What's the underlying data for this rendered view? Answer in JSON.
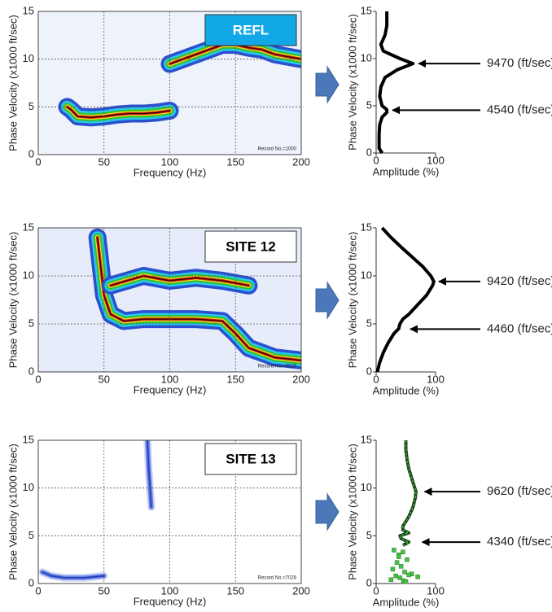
{
  "chart_data": [
    {
      "type": "dispersion",
      "xlabel": "Frequency (Hz)",
      "ylabel": "Phase Velocity (x1000 ft/sec)",
      "xlim": [
        0,
        200
      ],
      "ylim": [
        0,
        15
      ],
      "xticks": [
        0,
        50,
        100,
        150,
        200
      ],
      "yticks": [
        0,
        5,
        10,
        15
      ],
      "grid": true,
      "background": "#eef2fb",
      "colors": [
        "#2a4fd0",
        "#28c8e8",
        "#30c030",
        "#f0e020",
        "#d02010",
        "#2a0000"
      ],
      "label": "REFL",
      "label_color": "#12a8e8",
      "label_text_color": "#ffffff",
      "note": "Record No.=1000",
      "series": [
        {
          "x": [
            22,
            25,
            30,
            40,
            50,
            60,
            70,
            80,
            90,
            100
          ],
          "values": [
            5,
            4.7,
            4,
            3.9,
            4,
            4.2,
            4.3,
            4.3,
            4.4,
            4.6
          ]
        },
        {
          "x": [
            100,
            110,
            120,
            130,
            140,
            150,
            160,
            170,
            180,
            200
          ],
          "values": [
            9.5,
            10,
            10.5,
            11,
            11.5,
            11.5,
            11.2,
            11,
            10.5,
            10
          ]
        }
      ]
    },
    {
      "type": "profile",
      "xlabel": "Amplitude (%)",
      "ylabel": "Phase Velocity (x1000 ft/sec)",
      "xlim": [
        0,
        100
      ],
      "ylim": [
        0,
        15
      ],
      "xticks": [
        0,
        100
      ],
      "yticks": [
        0,
        5,
        10,
        15
      ],
      "color": "#000000",
      "x": [
        10,
        5,
        5,
        5,
        6,
        10,
        18,
        18,
        10,
        6,
        8,
        15,
        35,
        62,
        40,
        12,
        8,
        15,
        18,
        18
      ],
      "values": [
        0,
        0.5,
        1,
        2,
        3,
        3.8,
        4.3,
        4.6,
        5,
        6,
        7,
        8,
        8.8,
        9.47,
        10,
        10.8,
        11.5,
        12.5,
        13.5,
        15
      ],
      "annotations": [
        {
          "text": "9470 (ft/sec)",
          "y": 9.47,
          "x": 66
        },
        {
          "text": "4540 (ft/sec)",
          "y": 4.54,
          "x": 22
        }
      ]
    },
    {
      "type": "dispersion",
      "xlabel": "Frequency (Hz)",
      "ylabel": "Phase Velocity (x1000 ft/sec)",
      "xlim": [
        0,
        200
      ],
      "ylim": [
        0,
        15
      ],
      "xticks": [
        0,
        50,
        100,
        150,
        200
      ],
      "yticks": [
        0,
        5,
        10,
        15
      ],
      "grid": true,
      "background": "#e6ecfa",
      "colors": [
        "#2a4fd0",
        "#28c8e8",
        "#30c030",
        "#f0e020",
        "#d02010",
        "#2a0000"
      ],
      "label": "SITE 12",
      "label_color": "#ffffff",
      "label_text_color": "#000000",
      "note": "Record No.=6029",
      "series": [
        {
          "x": [
            45,
            50,
            55,
            65,
            80,
            100,
            120,
            140,
            150,
            160,
            180,
            200
          ],
          "values": [
            14,
            8,
            6,
            5.3,
            5.5,
            5.5,
            5.5,
            5.3,
            4,
            2.5,
            1.5,
            1.2
          ]
        },
        {
          "x": [
            55,
            80,
            100,
            120,
            140,
            160
          ],
          "values": [
            9,
            10,
            9.5,
            9.8,
            9.5,
            9
          ]
        }
      ]
    },
    {
      "type": "profile",
      "xlabel": "Amplitude (%)",
      "ylabel": "Phase Velocity (x1000 ft/sec)",
      "xlim": [
        0,
        100
      ],
      "ylim": [
        0,
        15
      ],
      "xticks": [
        0,
        100
      ],
      "yticks": [
        0,
        5,
        10,
        15
      ],
      "color": "#000000",
      "x": [
        2,
        6,
        12,
        20,
        30,
        38,
        40,
        45,
        55,
        70,
        85,
        95,
        97,
        92,
        78,
        60,
        42,
        25,
        10
      ],
      "values": [
        0,
        1,
        2,
        3,
        4,
        4.5,
        5,
        5.5,
        6,
        7,
        8,
        9,
        9.42,
        10,
        11,
        12,
        13,
        14,
        15
      ],
      "annotations": [
        {
          "text": "9420 (ft/sec)",
          "y": 9.42,
          "x": 100
        },
        {
          "text": "4460 (ft/sec)",
          "y": 4.46,
          "x": 52
        }
      ]
    },
    {
      "type": "dispersion",
      "xlabel": "Frequency (Hz)",
      "ylabel": "Phase Velocity (x1000 ft/sec)",
      "xlim": [
        0,
        200
      ],
      "ylim": [
        0,
        15
      ],
      "xticks": [
        0,
        50,
        100,
        150,
        200
      ],
      "yticks": [
        0,
        5,
        10,
        15
      ],
      "grid": true,
      "background": "#ffffff",
      "colors": [
        "#d4dcf6",
        "#6a86e4",
        "#2a3fc0"
      ],
      "label": "SITE 13",
      "label_color": "#ffffff",
      "label_text_color": "#000000",
      "note": "Record No.=7028",
      "series": [
        {
          "x": [
            3,
            10,
            20,
            35,
            50
          ],
          "values": [
            1.2,
            0.8,
            0.6,
            0.6,
            0.8
          ]
        },
        {
          "x": [
            83,
            84,
            85,
            86
          ],
          "values": [
            15,
            12,
            10,
            8
          ]
        }
      ]
    },
    {
      "type": "profile",
      "xlabel": "Amplitude (%)",
      "ylabel": "Phase Velocity (x1000 ft/sec)",
      "xlim": [
        0,
        100
      ],
      "ylim": [
        0,
        15
      ],
      "xticks": [
        0,
        100
      ],
      "yticks": [
        0,
        5,
        10,
        15
      ],
      "color": "#1e4a1e",
      "x": [
        45,
        55,
        42,
        40,
        55,
        45,
        45,
        55,
        62,
        66,
        67,
        65,
        60,
        55,
        52,
        50,
        50
      ],
      "values": [
        4,
        4.34,
        4.7,
        5,
        5.3,
        5.6,
        6,
        7,
        8,
        9,
        9.62,
        10,
        11,
        12,
        13,
        14,
        15
      ],
      "markers": {
        "color": "#44c044",
        "x": [
          30,
          38,
          45,
          52,
          35,
          42,
          28,
          48,
          60,
          33,
          40,
          55,
          25,
          46,
          38,
          70,
          50
        ],
        "values": [
          3.5,
          3.0,
          3.3,
          2.5,
          2.2,
          1.8,
          1.5,
          1.2,
          1.0,
          0.8,
          0.6,
          0.9,
          0.4,
          0.3,
          2.8,
          0.7,
          0.2
        ]
      },
      "annotations": [
        {
          "text": "9620 (ft/sec)",
          "y": 9.62,
          "x": 76
        },
        {
          "text": "4340 (ft/sec)",
          "y": 4.34,
          "x": 72
        }
      ]
    }
  ]
}
